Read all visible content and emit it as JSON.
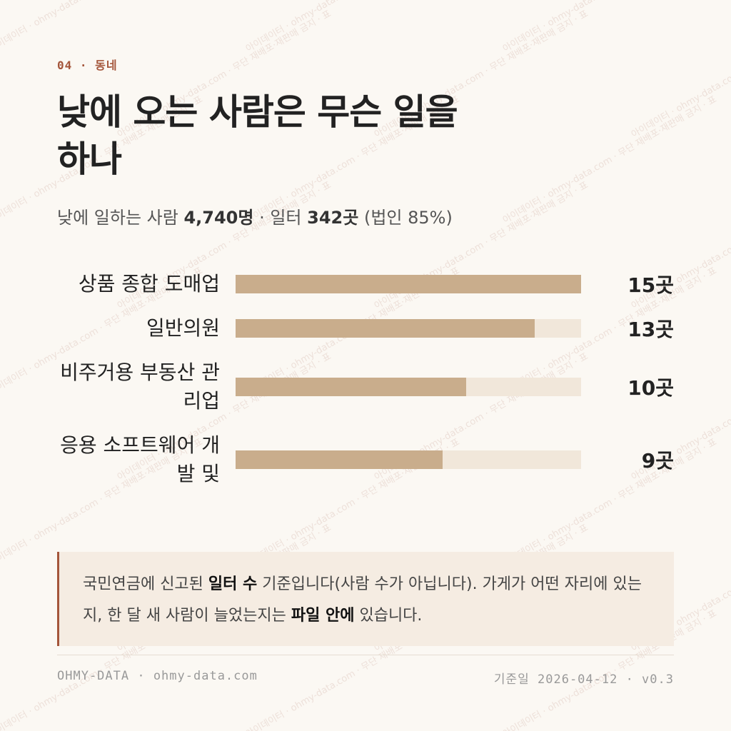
{
  "header": {
    "eyebrow": "04 · 동네"
  },
  "chart_data": {
    "type": "bar",
    "orientation": "horizontal",
    "title": "낮에 오는 사람은 무슨 일을 하나",
    "subtitle_parts": [
      "낮에 일하는 사람 ",
      "4,740명",
      " · 일터 ",
      "342곳",
      " (법인 85%)"
    ],
    "categories": [
      "상품 종합 도매업",
      "일반의원",
      "비주거용 부동산 관리업",
      "응용 소프트웨어 개발 및"
    ],
    "values": [
      15,
      13,
      10,
      9
    ],
    "value_labels": [
      "15곳",
      "13곳",
      "10곳",
      "9곳"
    ],
    "color": "#c9ad8c",
    "track_color": "#f1e7da"
  },
  "note": {
    "parts": [
      "국민연금에 신고된 ",
      "일터 수",
      " 기준입니다(사람 수가 아닙니다). 가게가 어떤 자리에 있는지, 한 달 새 사람이 늘었는지는 ",
      "파일 안에",
      " 있습니다."
    ]
  },
  "footer": {
    "left": "OHMY-DATA · ohmy-data.com",
    "right_label": "기준일",
    "right_value": "2026-04-12 · v0.3"
  },
  "watermark": "아이데이터 · ohmy-data.com · 무단 재배포·재판매 금지 · 표"
}
